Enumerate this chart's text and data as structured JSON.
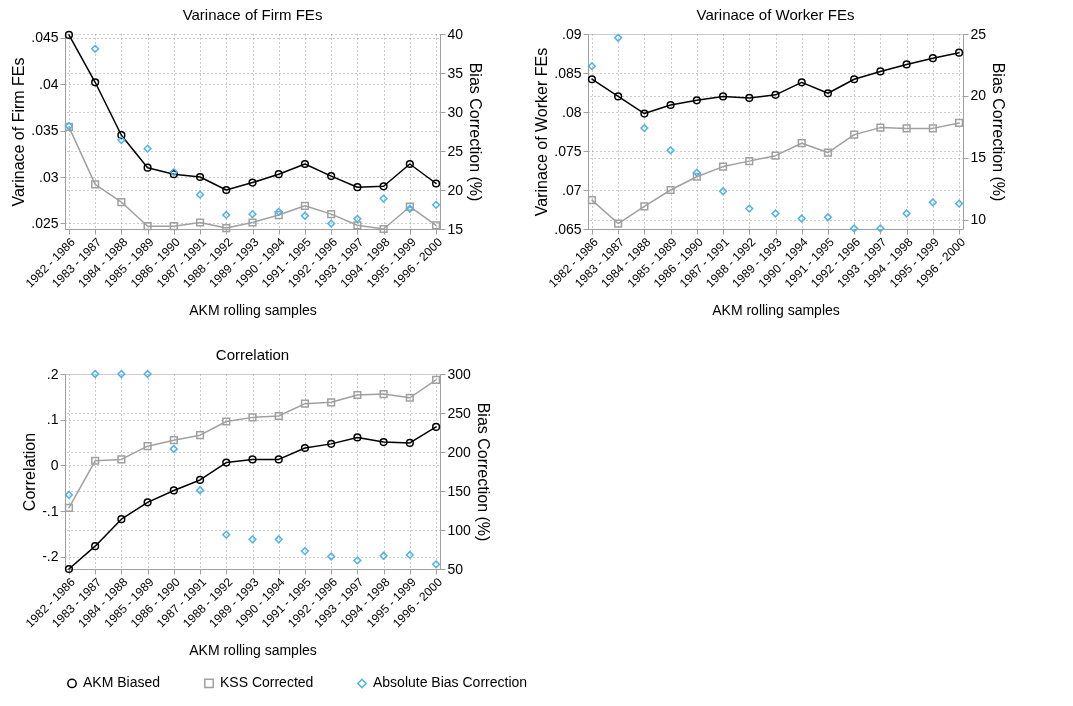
{
  "chart_data": [
    {
      "type": "line",
      "title": "Varinace of Firm FEs",
      "xlabel": "AKM rolling samples",
      "ylabel": "Varinace of Firm FEs",
      "y2label": "Bias Correction (%)",
      "categories": [
        "1982 - 1986",
        "1983 - 1987",
        "1984 - 1988",
        "1985 - 1989",
        "1986 - 1990",
        "1987 - 1991",
        "1988 - 1992",
        "1989 - 1993",
        "1990 - 1994",
        "1991 - 1995",
        "1992 - 1996",
        "1993 - 1997",
        "1994 - 1998",
        "1995 - 1999",
        "1996 - 2000"
      ],
      "series": [
        {
          "name": "AKM Biased",
          "color": "#000000",
          "marker": "circle",
          "values": [
            0.0453,
            0.0402,
            0.0345,
            0.031,
            0.0303,
            0.03,
            0.0286,
            0.0294,
            0.0303,
            0.0314,
            0.0301,
            0.0289,
            0.029,
            0.0314,
            0.0293
          ]
        },
        {
          "name": "KSS Corrected",
          "color": "#a0a0a0",
          "marker": "square",
          "values": [
            0.0354,
            0.0292,
            0.0273,
            0.0247,
            0.0247,
            0.0251,
            0.0245,
            0.0251,
            0.0259,
            0.0269,
            0.026,
            0.0248,
            0.0244,
            0.0268,
            0.0248
          ]
        },
        {
          "name": "Absolute Bias Correction",
          "color": "#4fb3e8",
          "type": "scatter",
          "marker": "diamond",
          "axis": "y2",
          "values": [
            28.2,
            38.1,
            26.4,
            25.3,
            22.3,
            19.4,
            16.8,
            16.9,
            17.2,
            16.7,
            15.7,
            16.3,
            18.9,
            17.6,
            18.1
          ]
        }
      ],
      "ylim": [
        0.0244,
        0.0454
      ],
      "yticks": [
        {
          "value": 0.025,
          "label": ".025"
        },
        {
          "value": 0.03,
          "label": ".03"
        },
        {
          "value": 0.035,
          "label": ".035"
        },
        {
          "value": 0.04,
          "label": ".04"
        },
        {
          "value": 0.045,
          "label": ".045"
        }
      ],
      "y2lim": [
        15,
        40
      ],
      "y2ticks": [
        15,
        20,
        25,
        30,
        35,
        40
      ],
      "grid": true,
      "legend": "bottom",
      "line_style": "solid"
    },
    {
      "type": "line",
      "title": "Varinace of Worker FEs",
      "xlabel": "AKM rolling samples",
      "ylabel": "Varinace of Worker FEs",
      "y2label": "Bias Correction (%)",
      "categories": [
        "1982 - 1986",
        "1983 - 1987",
        "1984 - 1988",
        "1985 - 1989",
        "1986 - 1990",
        "1987 - 1991",
        "1988 - 1992",
        "1989 - 1993",
        "1990 - 1994",
        "1991 - 1995",
        "1992 - 1996",
        "1993 - 1997",
        "1994 - 1998",
        "1995 - 1999",
        "1996 - 2000"
      ],
      "series": [
        {
          "color": "#000000",
          "marker": "circle",
          "values": [
            0.0842,
            0.082,
            0.0798,
            0.0809,
            0.0815,
            0.082,
            0.0818,
            0.0822,
            0.0838,
            0.0824,
            0.0842,
            0.0852,
            0.0861,
            0.0869,
            0.0876
          ]
        },
        {
          "color": "#a0a0a0",
          "marker": "square",
          "values": [
            0.0687,
            0.0657,
            0.0679,
            0.07,
            0.0717,
            0.073,
            0.0737,
            0.0744,
            0.076,
            0.0748,
            0.0771,
            0.078,
            0.0779,
            0.0779,
            0.0786
          ]
        },
        {
          "color": "#4fb3e8",
          "type": "scatter",
          "marker": "diamond",
          "axis": "y2",
          "values": [
            22.4,
            24.7,
            17.4,
            15.6,
            13.8,
            12.3,
            10.9,
            10.5,
            10.1,
            10.2,
            9.3,
            9.3,
            10.5,
            11.4,
            11.3
          ]
        }
      ],
      "ylim": [
        0.065,
        0.09
      ],
      "yticks": [
        {
          "value": 0.065,
          "label": ".065"
        },
        {
          "value": 0.07,
          "label": ".07"
        },
        {
          "value": 0.075,
          "label": ".075"
        },
        {
          "value": 0.08,
          "label": ".08"
        },
        {
          "value": 0.085,
          "label": ".085"
        },
        {
          "value": 0.09,
          "label": ".09"
        }
      ],
      "y2lim": [
        9.25,
        25
      ],
      "y2ticks": [
        10,
        15,
        20,
        25
      ],
      "grid": true,
      "line_style": "solid"
    },
    {
      "type": "line",
      "title": "Correlation",
      "xlabel": "AKM rolling samples",
      "ylabel": "Correlation",
      "y2label": "Bias Correction (%)",
      "categories": [
        "1982 - 1986",
        "1983 - 1987",
        "1984 - 1988",
        "1985 - 1989",
        "1986 - 1990",
        "1987 - 1991",
        "1988 - 1992",
        "1989 - 1993",
        "1990 - 1994",
        "1991 - 1995",
        "1992 - 1996",
        "1993 - 1997",
        "1994 - 1998",
        "1995 - 1999",
        "1996 - 2000"
      ],
      "series": [
        {
          "color": "#000000",
          "marker": "circle",
          "values": [
            -0.227,
            -0.177,
            -0.118,
            -0.081,
            -0.055,
            -0.032,
            0.006,
            0.013,
            0.013,
            0.038,
            0.047,
            0.061,
            0.051,
            0.049,
            0.084
          ]
        },
        {
          "color": "#a0a0a0",
          "marker": "square",
          "values": [
            -0.093,
            0.01,
            0.013,
            0.042,
            0.055,
            0.066,
            0.096,
            0.105,
            0.108,
            0.135,
            0.138,
            0.154,
            0.156,
            0.148,
            0.187
          ]
        },
        {
          "color": "#4fb3e8",
          "type": "scatter",
          "marker": "diamond",
          "axis": "y2",
          "values": [
            145,
            300,
            300,
            300,
            204,
            151,
            94,
            88,
            88,
            73,
            66,
            61,
            67,
            68,
            56
          ]
        }
      ],
      "ylim": [
        -0.227,
        0.2
      ],
      "yticks": [
        {
          "value": -0.2,
          "label": "-.2"
        },
        {
          "value": -0.1,
          "label": "-.1"
        },
        0,
        {
          "value": 0.1,
          "label": ".1"
        },
        {
          "value": 0.2,
          "label": ".2"
        }
      ],
      "y2lim": [
        50,
        300
      ],
      "y2ticks": [
        50,
        100,
        150,
        200,
        250,
        300
      ],
      "grid": true,
      "line_style": "solid"
    }
  ]
}
